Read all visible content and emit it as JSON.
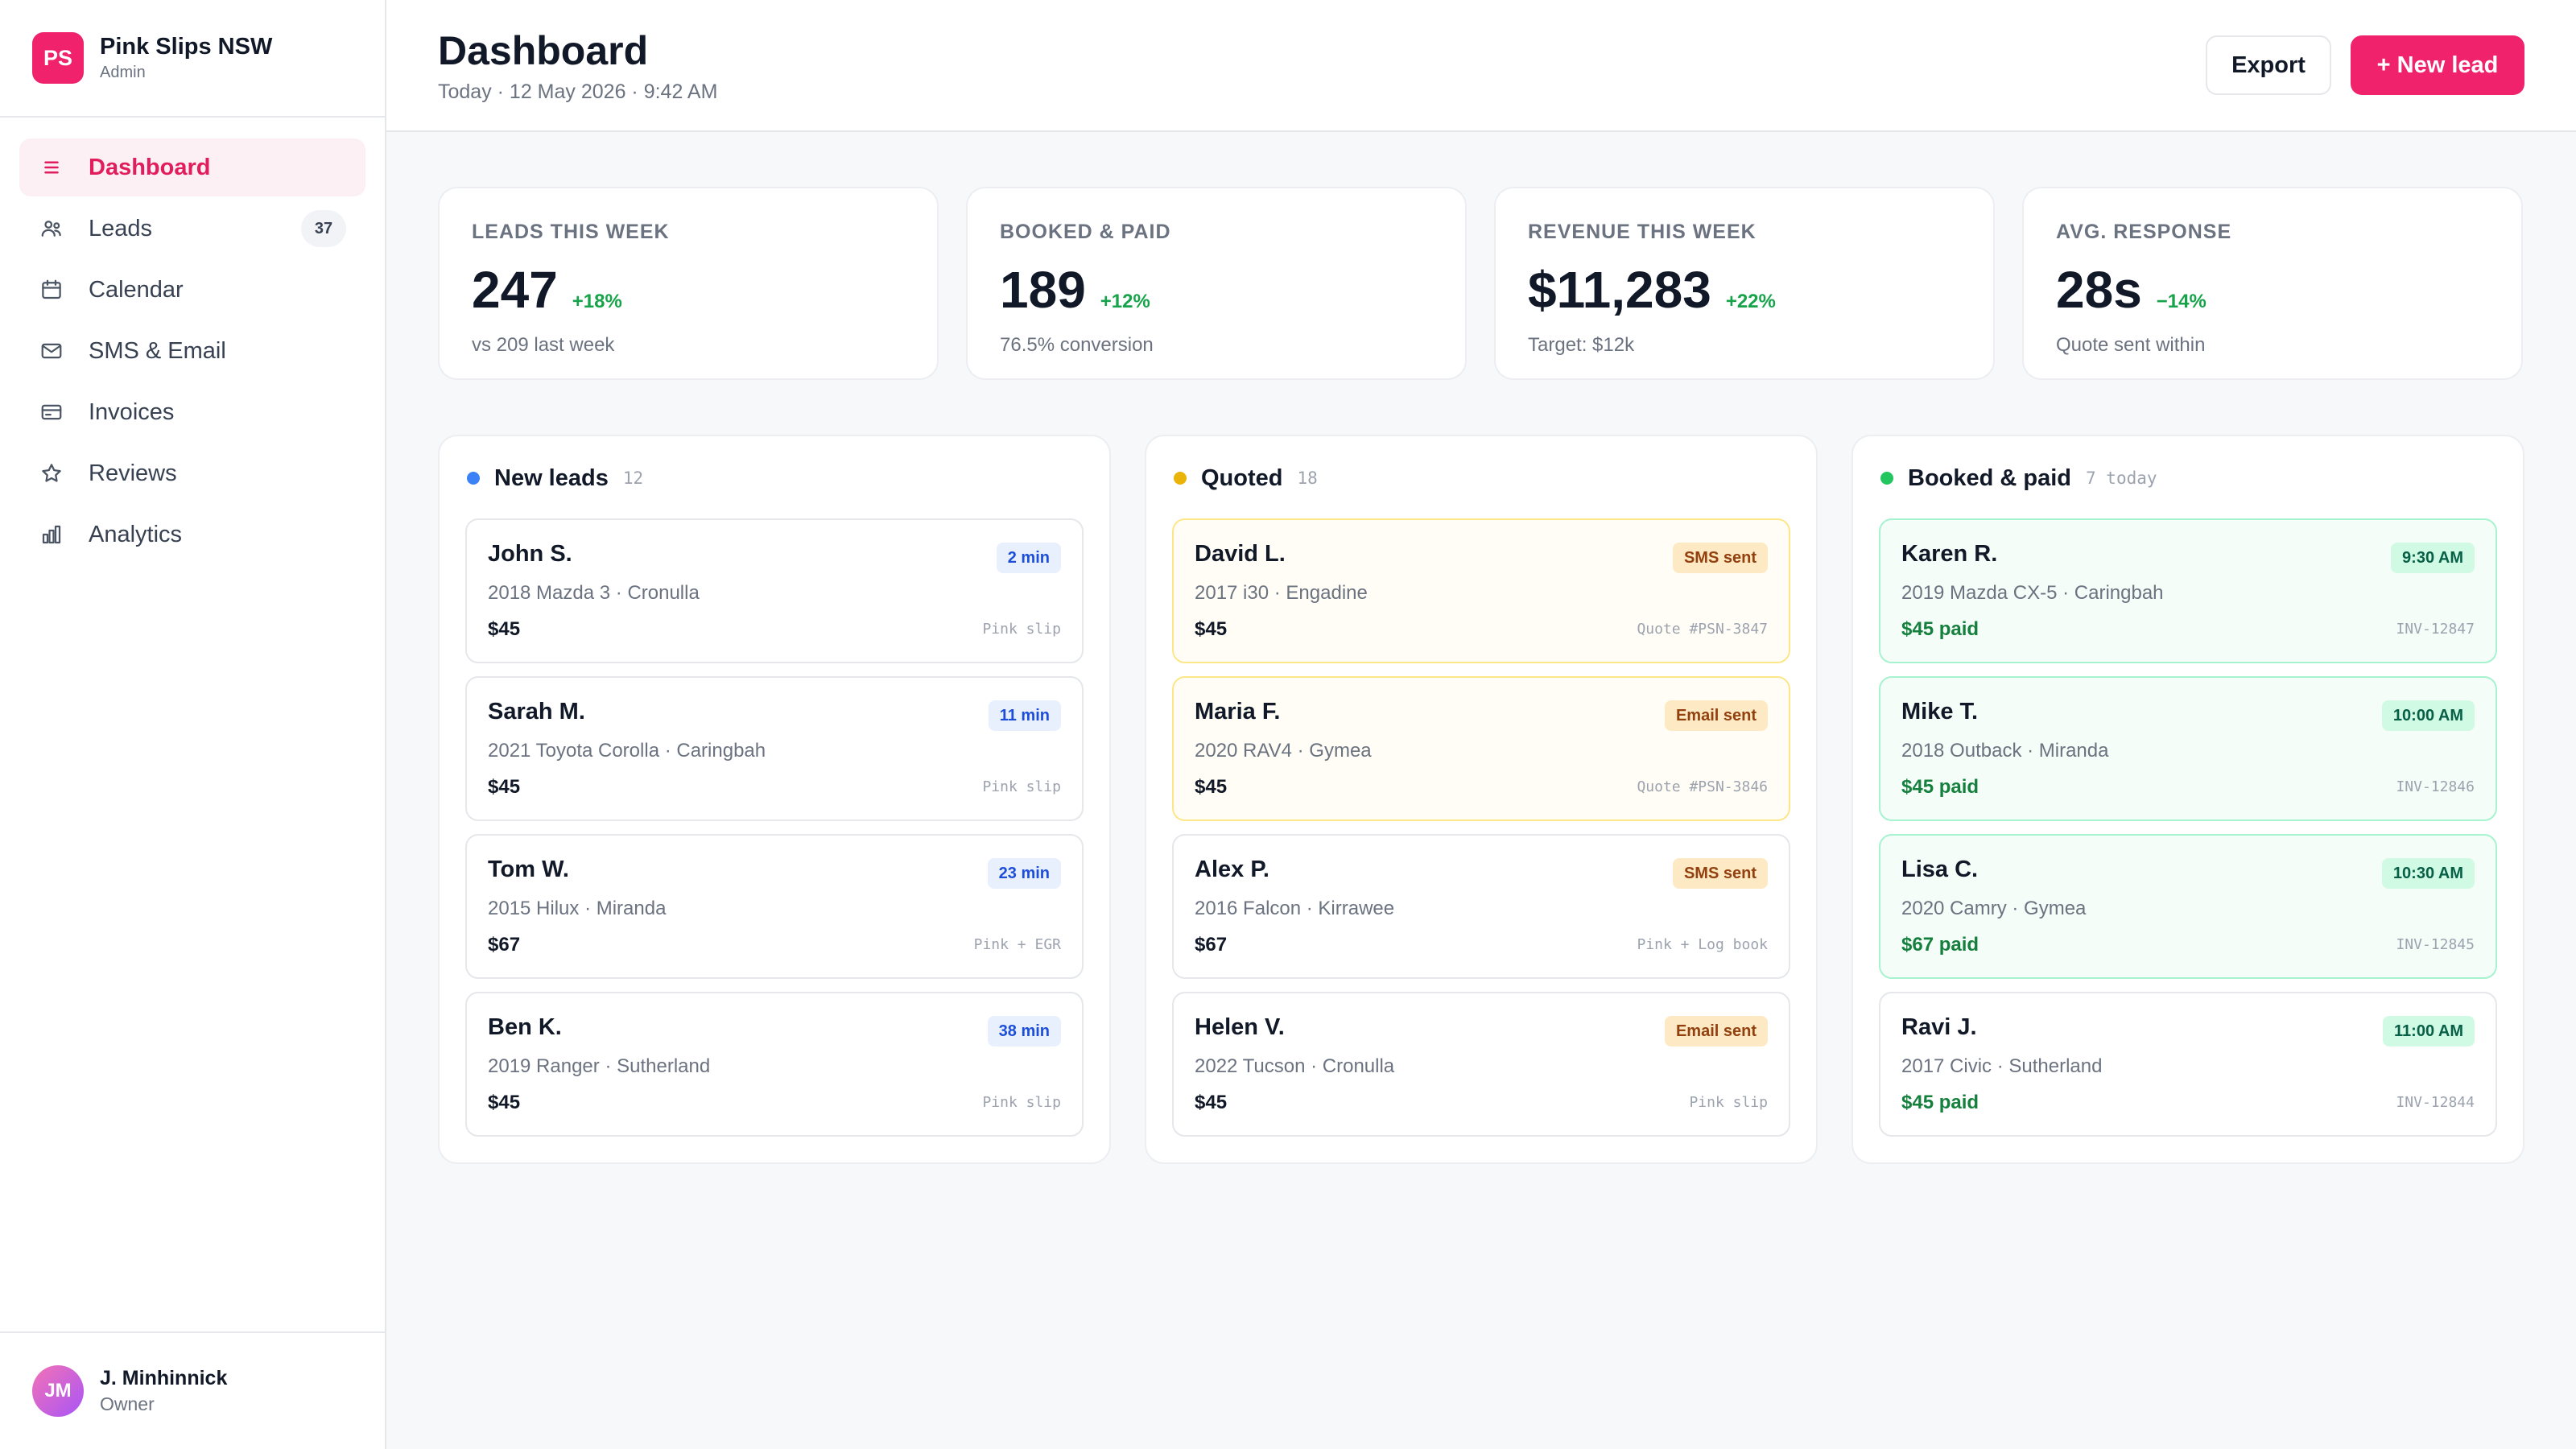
{
  "brand": {
    "logo": "PS",
    "name": "Pink Slips NSW",
    "role": "Admin"
  },
  "nav": [
    {
      "label": "Dashboard",
      "icon": "menu-icon",
      "active": true
    },
    {
      "label": "Leads",
      "icon": "users-icon",
      "count": "37"
    },
    {
      "label": "Calendar",
      "icon": "calendar-icon"
    },
    {
      "label": "SMS & Email",
      "icon": "mail-icon"
    },
    {
      "label": "Invoices",
      "icon": "invoice-icon"
    },
    {
      "label": "Reviews",
      "icon": "star-icon"
    },
    {
      "label": "Analytics",
      "icon": "bar-chart-icon"
    }
  ],
  "user": {
    "initials": "JM",
    "name": "J. Minhinnick",
    "role": "Owner"
  },
  "header": {
    "title": "Dashboard",
    "subtitle": "Today · 12 May 2026 · 9:42 AM",
    "export_label": "Export",
    "new_lead_label": "+ New lead"
  },
  "stats": [
    {
      "label": "Leads this week",
      "value": "247",
      "delta": "+18%",
      "sub": "vs 209 last week"
    },
    {
      "label": "Booked & paid",
      "value": "189",
      "delta": "+12%",
      "sub": "76.5% conversion"
    },
    {
      "label": "Revenue this week",
      "value": "$11,283",
      "delta": "+22%",
      "sub": "Target: $12k"
    },
    {
      "label": "Avg. response",
      "value": "28s",
      "delta": "−14%",
      "sub": "Quote sent within"
    }
  ],
  "columns": [
    {
      "title": "New leads",
      "count": "12",
      "dot_color": "#3b82f6",
      "cards": [
        {
          "name": "John S.",
          "car": "2018 Mazda 3 · Cronulla",
          "price": "$45",
          "tag": "2 min",
          "note": "Pink slip"
        },
        {
          "name": "Sarah M.",
          "car": "2021 Toyota Corolla · Caringbah",
          "price": "$45",
          "tag": "11 min",
          "note": "Pink slip"
        },
        {
          "name": "Tom W.",
          "car": "2015 Hilux · Miranda",
          "price": "$67",
          "tag": "23 min",
          "note": "Pink + EGR"
        },
        {
          "name": "Ben K.",
          "car": "2019 Ranger · Sutherland",
          "price": "$45",
          "tag": "38 min",
          "note": "Pink slip"
        }
      ]
    },
    {
      "title": "Quoted",
      "count": "18",
      "dot_color": "#eab308",
      "cards": [
        {
          "name": "David L.",
          "car": "2017 i30 · Engadine",
          "price": "$45",
          "tag": "SMS sent",
          "note": "Quote #PSN-3847",
          "highlight": true
        },
        {
          "name": "Maria F.",
          "car": "2020 RAV4 · Gymea",
          "price": "$45",
          "tag": "Email sent",
          "note": "Quote #PSN-3846",
          "highlight": true
        },
        {
          "name": "Alex P.",
          "car": "2016 Falcon · Kirrawee",
          "price": "$67",
          "tag": "SMS sent",
          "note": "Pink + Log book"
        },
        {
          "name": "Helen V.",
          "car": "2022 Tucson · Cronulla",
          "price": "$45",
          "tag": "Email sent",
          "note": "Pink slip"
        }
      ]
    },
    {
      "title": "Booked & paid",
      "count": "7 today",
      "dot_color": "#22c55e",
      "cards": [
        {
          "name": "Karen R.",
          "car": "2019 Mazda CX-5 · Caringbah",
          "price": "$45 paid",
          "tag": "9:30 AM",
          "note": "INV-12847",
          "highlight": true
        },
        {
          "name": "Mike T.",
          "car": "2018 Outback · Miranda",
          "price": "$45 paid",
          "tag": "10:00 AM",
          "note": "INV-12846",
          "highlight": true
        },
        {
          "name": "Lisa C.",
          "car": "2020 Camry · Gymea",
          "price": "$67 paid",
          "tag": "10:30 AM",
          "note": "INV-12845",
          "highlight": true
        },
        {
          "name": "Ravi J.",
          "car": "2017 Civic · Sutherland",
          "price": "$45 paid",
          "tag": "11:00 AM",
          "note": "INV-12844"
        }
      ]
    }
  ]
}
